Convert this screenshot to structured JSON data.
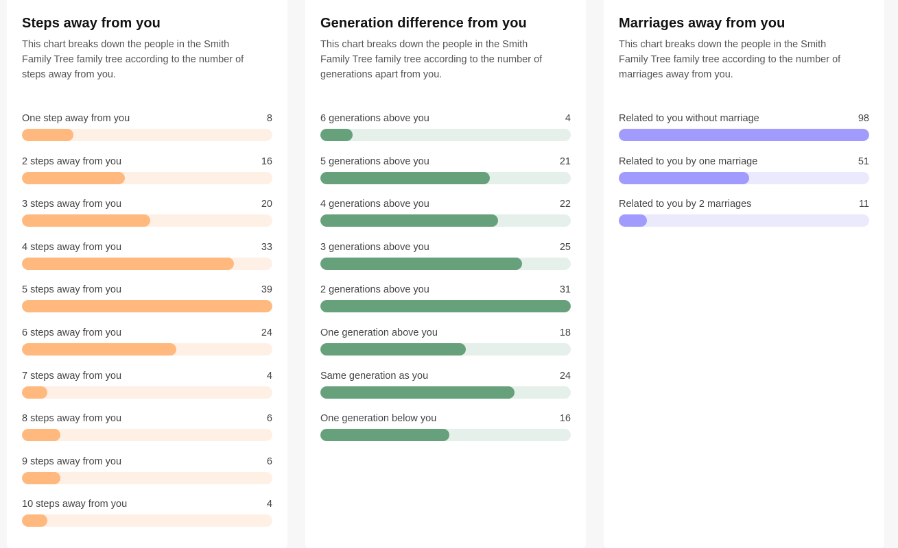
{
  "colors": {
    "steps_fill": "#ffb97f",
    "steps_track": "#fff0e6",
    "gen_fill": "#66a17c",
    "gen_track": "#e6f0ea",
    "marr_fill": "#a29bfe",
    "marr_track": "#ebeafd"
  },
  "steps": {
    "title": "Steps away from you",
    "description": "This chart breaks down the people in the Smith Family Tree family tree according to the number of steps away from you."
  },
  "generation": {
    "title": "Generation difference from you",
    "description": "This chart breaks down the people in the Smith Family Tree family tree according to the number of generations apart from you."
  },
  "marriages": {
    "title": "Marriages away from you",
    "description": "This chart breaks down the people in the Smith Family Tree family tree according to the number of marriages away from you."
  },
  "chart_data": [
    {
      "type": "bar",
      "title": "Steps away from you",
      "categories": [
        "One step away from you",
        "2 steps away from you",
        "3 steps away from you",
        "4 steps away from you",
        "5 steps away from you",
        "6 steps away from you",
        "7 steps away from you",
        "8 steps away from you",
        "9 steps away from you",
        "10 steps away from you"
      ],
      "values": [
        8,
        16,
        20,
        33,
        39,
        24,
        4,
        6,
        6,
        4
      ]
    },
    {
      "type": "bar",
      "title": "Generation difference from you",
      "categories": [
        "6 generations above you",
        "5 generations above you",
        "4 generations above you",
        "3 generations above you",
        "2 generations above you",
        "One generation above you",
        "Same generation as you",
        "One generation below you"
      ],
      "values": [
        4,
        21,
        22,
        25,
        31,
        18,
        24,
        16
      ]
    },
    {
      "type": "bar",
      "title": "Marriages away from you",
      "categories": [
        "Related to you without marriage",
        "Related to you by one marriage",
        "Related to you by 2 marriages"
      ],
      "values": [
        98,
        51,
        11
      ]
    }
  ]
}
